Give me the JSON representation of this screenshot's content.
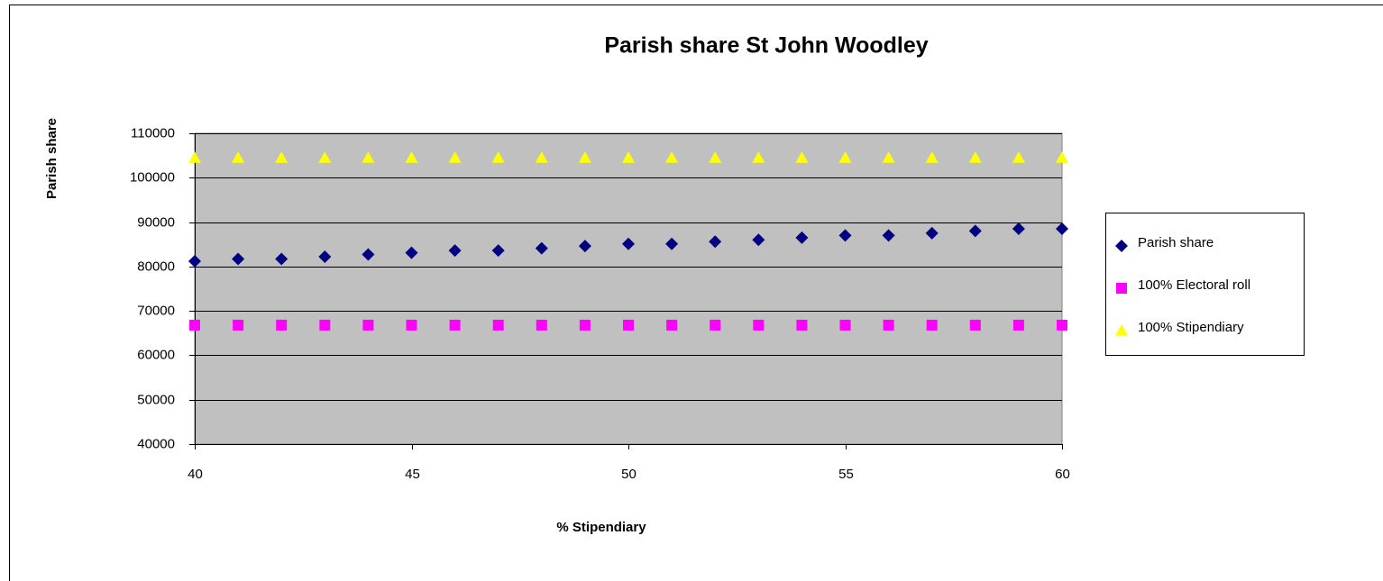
{
  "chart_data": {
    "type": "scatter",
    "title": "Parish share St John Woodley",
    "xlabel": "% Stipendiary",
    "ylabel": "Parish share",
    "x": [
      40,
      41,
      42,
      43,
      44,
      45,
      46,
      47,
      48,
      49,
      50,
      51,
      52,
      53,
      54,
      55,
      56,
      57,
      58,
      59,
      60
    ],
    "series": [
      {
        "name": "Parish share",
        "color": "#000080",
        "marker": "diamond",
        "values": [
          81200,
          81700,
          81700,
          82200,
          82700,
          83100,
          83600,
          83600,
          84100,
          84600,
          85100,
          85100,
          85600,
          86000,
          86500,
          87000,
          87000,
          87500,
          88000,
          88500,
          88500
        ]
      },
      {
        "name": "100% Electoral roll",
        "color": "#ff00ff",
        "marker": "square",
        "values": [
          66800,
          66800,
          66800,
          66800,
          66800,
          66800,
          66800,
          66800,
          66800,
          66800,
          66800,
          66800,
          66800,
          66800,
          66800,
          66800,
          66800,
          66800,
          66800,
          66800,
          66800
        ]
      },
      {
        "name": "100% Stipendiary",
        "color": "#ffff00",
        "marker": "triangle",
        "values": [
          104500,
          104500,
          104500,
          104500,
          104500,
          104500,
          104500,
          104500,
          104500,
          104500,
          104500,
          104500,
          104500,
          104500,
          104500,
          104500,
          104500,
          104500,
          104500,
          104500,
          104500
        ]
      }
    ],
    "xlim": [
      40,
      60
    ],
    "xticks": [
      40,
      45,
      50,
      55,
      60
    ],
    "ylim": [
      40000,
      110000
    ],
    "yticks": [
      40000,
      50000,
      60000,
      70000,
      80000,
      90000,
      100000,
      110000
    ],
    "grid": true,
    "legend": "right",
    "plot_background": "#c0c0c0"
  }
}
